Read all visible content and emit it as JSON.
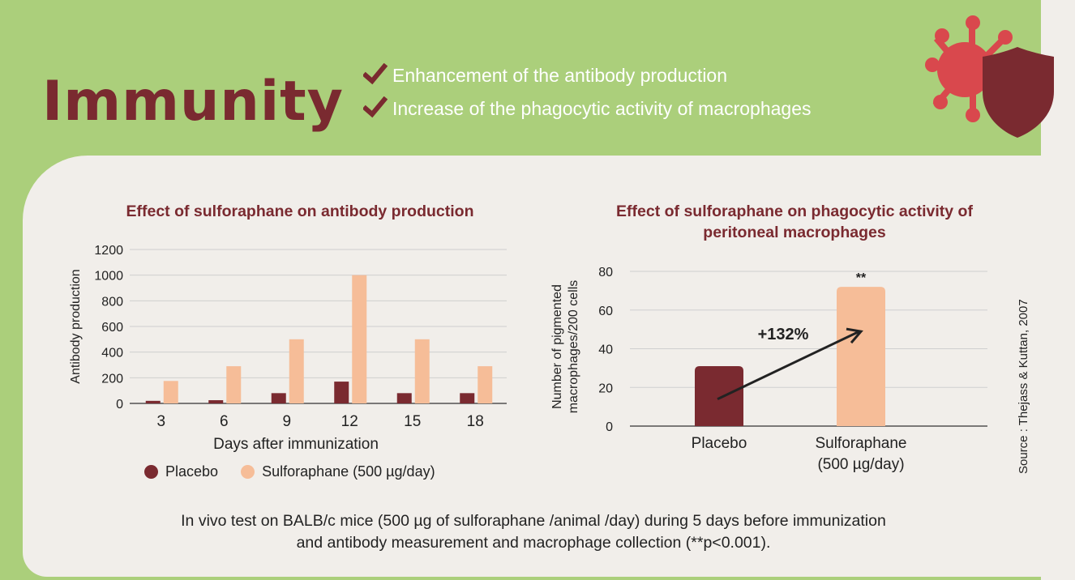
{
  "header": {
    "title": "Immunity",
    "bullets": [
      "Enhancement of the antibody production",
      "Increase of the phagocytic activity of macrophages"
    ]
  },
  "colors": {
    "placebo": "#7a2a30",
    "sulforaphane": "#f6bd98",
    "background_green": "#abcf7b",
    "card": "#f1eeea",
    "virus": "#d9484d"
  },
  "icons": [
    "check-icon",
    "virus-shield-icon"
  ],
  "chart_data": [
    {
      "type": "bar",
      "title": "Effect of sulforaphane on antibody production",
      "xlabel": "Days after immunization",
      "ylabel": "Antibody production",
      "categories": [
        "3",
        "6",
        "9",
        "12",
        "15",
        "18"
      ],
      "yticks": [
        0,
        200,
        400,
        600,
        800,
        1000,
        1200
      ],
      "ylim": [
        0,
        1200
      ],
      "grid": true,
      "legend_position": "bottom",
      "series": [
        {
          "name": "Placebo",
          "values": [
            20,
            25,
            80,
            170,
            80,
            80
          ]
        },
        {
          "name": "Sulforaphane (500 µg/day)",
          "values": [
            175,
            290,
            500,
            1000,
            500,
            290
          ]
        }
      ]
    },
    {
      "type": "bar",
      "title": "Effect of sulforaphane on phagocytic activity of peritoneal macrophages",
      "ylabel_lines": [
        "Number of pigmented",
        "macrophages/200 cells"
      ],
      "categories": [
        [
          "Placebo"
        ],
        [
          "Sulforaphane",
          "(500 µg/day)"
        ]
      ],
      "values": [
        31,
        72
      ],
      "yticks": [
        0,
        20,
        40,
        60,
        80
      ],
      "ylim": [
        0,
        80
      ],
      "grid": true,
      "annotations": {
        "increase": "+132%",
        "significance": "**"
      }
    }
  ],
  "source": "Source : Thejass & Kuttan, 2007",
  "footer": {
    "line1": "In vivo test on BALB/c mice (500 µg of sulforaphane /animal /day) during 5 days before immunization",
    "line2": "and antibody measurement and macrophage collection (**p<0.001)."
  }
}
